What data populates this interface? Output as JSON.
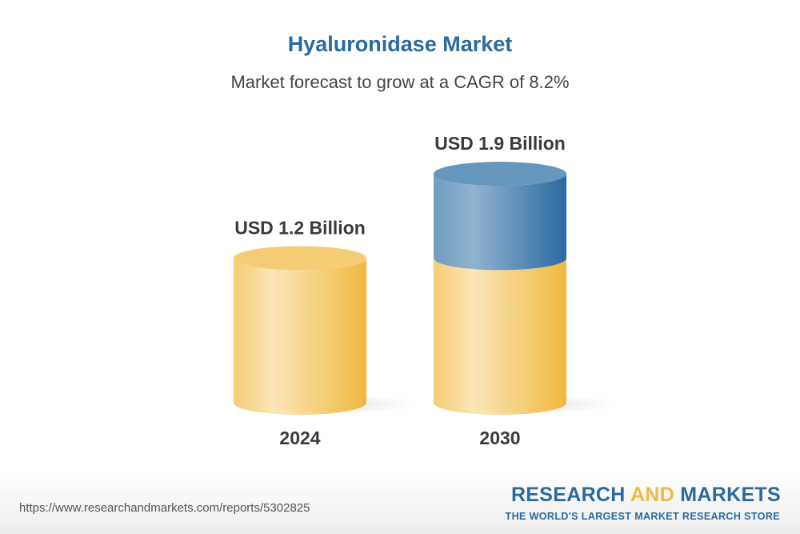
{
  "chart_data": {
    "type": "bar",
    "title": "Hyaluronidase Market",
    "subtitle": "Market forecast to grow at a CAGR of 8.2%",
    "categories": [
      "2024",
      "2030"
    ],
    "values": [
      1.2,
      1.9
    ],
    "unit": "USD Billion",
    "data_labels": [
      "USD 1.2 Billion",
      "USD 1.9 Billion"
    ],
    "style": "3d-cylinder",
    "colors": {
      "base": "#f0b940",
      "growth": "#2a6aa1"
    },
    "grid": false
  },
  "footer": {
    "url": "https://www.researchandmarkets.com/reports/5302825",
    "logo_part1": "RESEARCH ",
    "logo_part2": "AND",
    "logo_part3": " MARKETS",
    "tagline": "THE WORLD'S LARGEST MARKET RESEARCH STORE"
  }
}
